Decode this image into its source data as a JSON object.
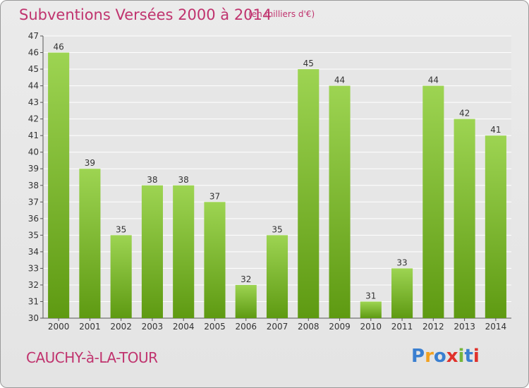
{
  "title": "Subventions Versées 2000 à 2014",
  "subtitle": "(en milliers d'€)",
  "place": "CAUCHY-à-LA-TOUR",
  "logo": {
    "text": "Proxiti",
    "letters": [
      "P",
      "r",
      "o",
      "x",
      "i",
      "t",
      "i"
    ],
    "colors": [
      "#3a7fd0",
      "#f2a11f",
      "#3a7fd0",
      "#e0312b",
      "#76b63a",
      "#3a7fd0",
      "#e0312b"
    ]
  },
  "colors": {
    "bar_top": "#9dd452",
    "bar_bottom": "#5e9a12",
    "text": "#c0336e",
    "grid": "#ffffff"
  },
  "chart_data": {
    "type": "bar",
    "title": "Subventions Versées 2000 à 2014",
    "subtitle": "(en milliers d'€)",
    "categories": [
      "2000",
      "2001",
      "2002",
      "2003",
      "2004",
      "2005",
      "2006",
      "2007",
      "2008",
      "2009",
      "2010",
      "2011",
      "2012",
      "2013",
      "2014"
    ],
    "values": [
      46,
      39,
      35,
      38,
      38,
      37,
      32,
      35,
      45,
      44,
      31,
      33,
      44,
      42,
      41
    ],
    "ylim": [
      30,
      47
    ],
    "yticks": [
      30,
      31,
      32,
      33,
      34,
      35,
      36,
      37,
      38,
      39,
      40,
      41,
      42,
      43,
      44,
      45,
      46,
      47
    ],
    "grid": true,
    "legend": "none"
  }
}
